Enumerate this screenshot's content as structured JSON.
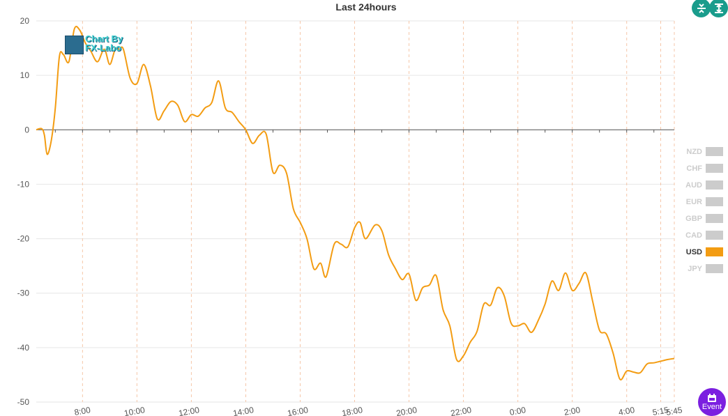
{
  "chart_data": {
    "type": "line",
    "title": "Last 24hours",
    "ylim": [
      -50,
      20
    ],
    "yticks": [
      "20",
      "10",
      "0",
      "-10",
      "-20",
      "-30",
      "-40",
      "-50"
    ],
    "ytick_values": [
      20,
      10,
      0,
      -10,
      -20,
      -30,
      -40,
      -50
    ],
    "xlim": [
      6.3,
      29.75
    ],
    "xticks": [
      {
        "label": "8:00",
        "value": 8
      },
      {
        "label": "10:00",
        "value": 10
      },
      {
        "label": "12:00",
        "value": 12
      },
      {
        "label": "14:00",
        "value": 14
      },
      {
        "label": "16:00",
        "value": 16
      },
      {
        "label": "18:00",
        "value": 18
      },
      {
        "label": "20:00",
        "value": 20
      },
      {
        "label": "22:00",
        "value": 22
      },
      {
        "label": "0:00",
        "value": 24
      },
      {
        "label": "2:00",
        "value": 26
      },
      {
        "label": "4:00",
        "value": 28
      },
      {
        "label": "5:15",
        "value": 29.25
      },
      {
        "label": "5:45",
        "value": 29.75
      }
    ],
    "grid": true,
    "legend_position": "right",
    "series": [
      {
        "name": "USD",
        "color": "#f39c12",
        "points": [
          [
            6.3,
            0
          ],
          [
            6.5,
            0.2
          ],
          [
            6.6,
            -1
          ],
          [
            6.7,
            -4.5
          ],
          [
            6.85,
            -2
          ],
          [
            7.0,
            4
          ],
          [
            7.15,
            13.5
          ],
          [
            7.3,
            13.8
          ],
          [
            7.5,
            12.5
          ],
          [
            7.7,
            18.5
          ],
          [
            7.9,
            18.3
          ],
          [
            8.1,
            16
          ],
          [
            8.3,
            14.5
          ],
          [
            8.55,
            12.5
          ],
          [
            8.8,
            14.8
          ],
          [
            9.0,
            12
          ],
          [
            9.2,
            14.8
          ],
          [
            9.35,
            14.8
          ],
          [
            9.5,
            14.8
          ],
          [
            9.75,
            9.5
          ],
          [
            10.0,
            8.5
          ],
          [
            10.25,
            12
          ],
          [
            10.5,
            8
          ],
          [
            10.75,
            2
          ],
          [
            11.0,
            3.5
          ],
          [
            11.25,
            5.2
          ],
          [
            11.5,
            4.5
          ],
          [
            11.75,
            1.5
          ],
          [
            12.0,
            2.8
          ],
          [
            12.25,
            2.5
          ],
          [
            12.5,
            4
          ],
          [
            12.75,
            5
          ],
          [
            13.0,
            9
          ],
          [
            13.25,
            4
          ],
          [
            13.5,
            3.2
          ],
          [
            13.75,
            1.5
          ],
          [
            14.0,
            0
          ],
          [
            14.25,
            -2.5
          ],
          [
            14.5,
            -1
          ],
          [
            14.75,
            -0.8
          ],
          [
            15.0,
            -7.8
          ],
          [
            15.25,
            -6.5
          ],
          [
            15.5,
            -8
          ],
          [
            15.75,
            -14.5
          ],
          [
            16.0,
            -17
          ],
          [
            16.25,
            -20
          ],
          [
            16.5,
            -25.5
          ],
          [
            16.75,
            -24.5
          ],
          [
            16.95,
            -27
          ],
          [
            17.25,
            -21
          ],
          [
            17.5,
            -21
          ],
          [
            17.75,
            -21.5
          ],
          [
            18.0,
            -18
          ],
          [
            18.2,
            -17
          ],
          [
            18.4,
            -20
          ],
          [
            18.75,
            -17.5
          ],
          [
            19.0,
            -18.5
          ],
          [
            19.25,
            -23
          ],
          [
            19.5,
            -25.5
          ],
          [
            19.75,
            -27.5
          ],
          [
            20.0,
            -26.5
          ],
          [
            20.25,
            -31.3
          ],
          [
            20.5,
            -29
          ],
          [
            20.75,
            -28.5
          ],
          [
            21.0,
            -26.8
          ],
          [
            21.25,
            -33
          ],
          [
            21.5,
            -36
          ],
          [
            21.75,
            -42.2
          ],
          [
            22.0,
            -41.5
          ],
          [
            22.25,
            -39
          ],
          [
            22.5,
            -37
          ],
          [
            22.75,
            -32
          ],
          [
            23.0,
            -32.2
          ],
          [
            23.25,
            -29
          ],
          [
            23.5,
            -30.5
          ],
          [
            23.75,
            -35.5
          ],
          [
            24.0,
            -36
          ],
          [
            24.25,
            -35.6
          ],
          [
            24.5,
            -37.2
          ],
          [
            24.75,
            -35
          ],
          [
            25.0,
            -32
          ],
          [
            25.25,
            -27.8
          ],
          [
            25.5,
            -29.5
          ],
          [
            25.75,
            -26.3
          ],
          [
            26.0,
            -29.5
          ],
          [
            26.25,
            -28.2
          ],
          [
            26.5,
            -26.3
          ],
          [
            26.75,
            -31.5
          ],
          [
            27.0,
            -36.8
          ],
          [
            27.25,
            -37.5
          ],
          [
            27.5,
            -41
          ],
          [
            27.75,
            -45.8
          ],
          [
            28.0,
            -44.3
          ],
          [
            28.25,
            -44.5
          ],
          [
            28.5,
            -44.6
          ],
          [
            28.75,
            -43
          ],
          [
            29.0,
            -42.8
          ],
          [
            29.25,
            -42.5
          ],
          [
            29.5,
            -42.2
          ],
          [
            29.75,
            -42
          ]
        ]
      }
    ]
  },
  "legend": {
    "items": [
      {
        "label": "NZD",
        "active": false,
        "color": "#cccccc"
      },
      {
        "label": "CHF",
        "active": false,
        "color": "#cccccc"
      },
      {
        "label": "AUD",
        "active": false,
        "color": "#cccccc"
      },
      {
        "label": "EUR",
        "active": false,
        "color": "#cccccc"
      },
      {
        "label": "GBP",
        "active": false,
        "color": "#cccccc"
      },
      {
        "label": "CAD",
        "active": false,
        "color": "#cccccc"
      },
      {
        "label": "USD",
        "active": true,
        "color": "#f39c12"
      },
      {
        "label": "JPY",
        "active": false,
        "color": "#cccccc"
      }
    ]
  },
  "watermark": {
    "line1": "Chart By",
    "line2": "FX-Labo"
  },
  "controls": {
    "event_label": "Event",
    "zoom_in_icon": "collapse-vertical-icon",
    "zoom_out_icon": "expand-vertical-icon"
  },
  "colors": {
    "accent": "#1a9c8c",
    "event": "#7b1fe0",
    "line": "#f39c12"
  }
}
